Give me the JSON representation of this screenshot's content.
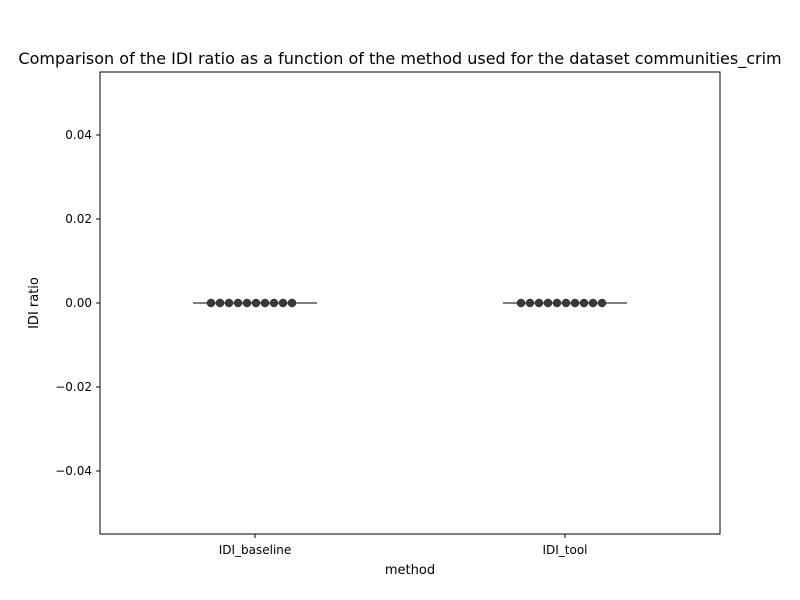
{
  "chart_data": {
    "type": "scatter",
    "title": "Comparison of the IDI ratio as a function of the method used for the dataset communities_crim",
    "xlabel": "method",
    "ylabel": "IDI ratio",
    "categories": [
      "IDI_baseline",
      "IDI_tool"
    ],
    "ylim": [
      -0.055,
      0.055
    ],
    "yticks": [
      -0.04,
      -0.02,
      0.0,
      0.02,
      0.04
    ],
    "ytick_labels": [
      "−0.04",
      "−0.02",
      "0.00",
      "0.02",
      "0.04"
    ],
    "series": [
      {
        "category": "IDI_baseline",
        "values": [
          0,
          0,
          0,
          0,
          0,
          0,
          0,
          0,
          0,
          0
        ],
        "median": 0
      },
      {
        "category": "IDI_tool",
        "values": [
          0,
          0,
          0,
          0,
          0,
          0,
          0,
          0,
          0,
          0
        ],
        "median": 0
      }
    ],
    "grid": false,
    "colors": {
      "points": "#3a3a3a",
      "median_line": "#555555",
      "axes": "#000000"
    }
  }
}
